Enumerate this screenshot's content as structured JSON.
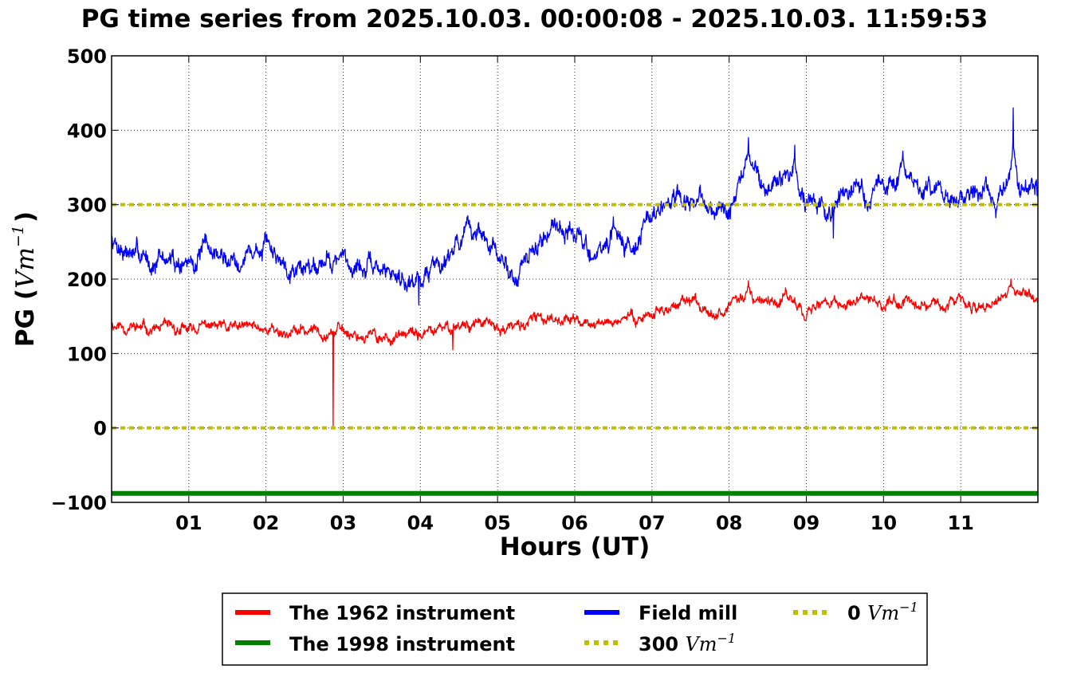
{
  "chart_data": {
    "type": "line",
    "title": "PG time series from 2025.10.03. 00:00:08 - 2025.10.03. 11:59:53",
    "xlabel": "Hours (UT)",
    "ylabel_prefix": "PG (",
    "ylabel_unit_base": "Vm",
    "ylabel_unit_exp": "−1",
    "ylabel_suffix": ")",
    "xlim": [
      0,
      12
    ],
    "ylim": [
      -100,
      500
    ],
    "x_ticks": [
      1,
      2,
      3,
      4,
      5,
      6,
      7,
      8,
      9,
      10,
      11
    ],
    "x_tick_labels": [
      "01",
      "02",
      "03",
      "04",
      "05",
      "06",
      "07",
      "08",
      "09",
      "10",
      "11"
    ],
    "y_ticks": [
      -100,
      0,
      100,
      200,
      300,
      400,
      500
    ],
    "y_tick_labels": [
      "−100",
      "0",
      "100",
      "200",
      "300",
      "400",
      "500"
    ],
    "grid": true,
    "legend_position": "bottom-center",
    "legend_columns": 3,
    "legend": [
      {
        "label": "The 1962 instrument",
        "unit": "",
        "color": "#ff0000",
        "style": "solid"
      },
      {
        "label": "The 1998 instrument",
        "unit": "",
        "color": "#008000",
        "style": "solid"
      },
      {
        "label": "Field mill",
        "unit": "",
        "color": "#0000ff",
        "style": "solid"
      },
      {
        "label": "300 ",
        "unit": "Vm",
        "exp": "−1",
        "color": "#bfbf00",
        "style": "dotted"
      },
      {
        "label": "0 ",
        "unit": "Vm",
        "exp": "−1",
        "color": "#bfbf00",
        "style": "dotted"
      }
    ],
    "series": [
      {
        "name": "Field mill",
        "color": "#0000ff",
        "x": [
          0,
          0.25,
          0.5,
          0.75,
          1.0,
          1.25,
          1.5,
          1.75,
          2.0,
          2.25,
          2.5,
          2.75,
          3.0,
          3.25,
          3.5,
          3.75,
          4.0,
          4.25,
          4.5,
          4.75,
          5.0,
          5.25,
          5.5,
          5.75,
          6.0,
          6.25,
          6.5,
          6.75,
          7.0,
          7.25,
          7.5,
          7.75,
          8.0,
          8.25,
          8.5,
          8.75,
          9.0,
          9.25,
          9.5,
          9.75,
          10.0,
          10.25,
          10.5,
          10.75,
          11.0,
          11.25,
          11.5,
          11.75,
          12.0
        ],
        "y": [
          255,
          235,
          225,
          225,
          220,
          240,
          225,
          235,
          240,
          225,
          215,
          230,
          225,
          215,
          210,
          205,
          200,
          225,
          255,
          265,
          225,
          205,
          240,
          280,
          260,
          230,
          255,
          250,
          285,
          300,
          300,
          300,
          285,
          355,
          320,
          345,
          300,
          285,
          320,
          310,
          325,
          335,
          320,
          310,
          320,
          310,
          305,
          330,
          320
        ],
        "noise": 14,
        "seed": 7,
        "spikes": [
          [
            8.25,
            390
          ],
          [
            8.85,
            380
          ],
          [
            9.35,
            255
          ],
          [
            10.25,
            372
          ],
          [
            11.68,
            430
          ],
          [
            3.98,
            165
          ]
        ]
      },
      {
        "name": "The 1962 instrument",
        "color": "#ff0000",
        "x": [
          0,
          0.25,
          0.5,
          0.75,
          1.0,
          1.25,
          1.5,
          1.75,
          2.0,
          2.25,
          2.5,
          2.75,
          3.0,
          3.25,
          3.5,
          3.75,
          4.0,
          4.25,
          4.5,
          4.75,
          5.0,
          5.25,
          5.5,
          5.75,
          6.0,
          6.25,
          6.5,
          6.75,
          7.0,
          7.25,
          7.5,
          7.75,
          8.0,
          8.25,
          8.5,
          8.75,
          9.0,
          9.25,
          9.5,
          9.75,
          10.0,
          10.25,
          10.5,
          10.75,
          11.0,
          11.25,
          11.5,
          11.75,
          12.0
        ],
        "y": [
          140,
          135,
          133,
          132,
          130,
          138,
          132,
          135,
          135,
          128,
          130,
          132,
          130,
          125,
          122,
          122,
          125,
          130,
          140,
          142,
          132,
          135,
          145,
          150,
          145,
          138,
          145,
          148,
          155,
          162,
          168,
          162,
          160,
          182,
          165,
          178,
          160,
          168,
          165,
          168,
          168,
          172,
          168,
          168,
          168,
          165,
          168,
          182,
          172
        ],
        "noise": 8,
        "seed": 11,
        "spikes": [
          [
            2.87,
            0
          ],
          [
            8.25,
            198
          ],
          [
            11.65,
            200
          ],
          [
            4.42,
            105
          ]
        ]
      },
      {
        "name": "The 1998 instrument",
        "color": "#008000",
        "x": [
          0,
          12
        ],
        "y": [
          -88,
          -88
        ],
        "noise": 0,
        "seed": 3,
        "spikes": []
      }
    ],
    "reference_lines": [
      {
        "name": "300 Vm−1",
        "y": 300,
        "color": "#bfbf00"
      },
      {
        "name": "0 Vm−1",
        "y": 0,
        "color": "#bfbf00"
      }
    ]
  }
}
